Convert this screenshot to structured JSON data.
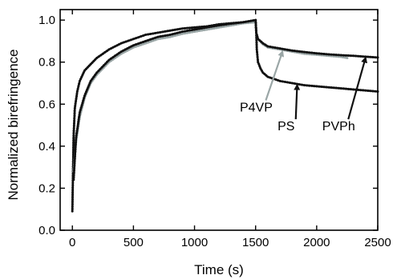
{
  "chart_data": {
    "type": "scatter",
    "title": "",
    "xlabel": "Time (s)",
    "ylabel": "Normalized birefringence",
    "xlim": [
      -100,
      2500
    ],
    "ylim": [
      0,
      1.05
    ],
    "x_ticks": [
      0,
      500,
      1000,
      1500,
      2000,
      2500
    ],
    "x_tick_labels": [
      "0",
      "500",
      "1000",
      "1500",
      "2000",
      "2500"
    ],
    "y_ticks": [
      0.0,
      0.2,
      0.4,
      0.6,
      0.8,
      1.0
    ],
    "y_tick_labels": [
      "0.0",
      "0.2",
      "0.4",
      "0.6",
      "0.8",
      "1.0"
    ],
    "grid": false,
    "legend": "none",
    "series": [
      {
        "name": "PS",
        "color": "#111111",
        "x": [
          0,
          10,
          20,
          40,
          60,
          100,
          150,
          200,
          300,
          400,
          500,
          600,
          700,
          800,
          900,
          1000,
          1100,
          1200,
          1300,
          1400,
          1500,
          1505,
          1510,
          1520,
          1540,
          1560,
          1600,
          1650,
          1700,
          1800,
          1900,
          2000,
          2100,
          2200,
          2300,
          2400,
          2500
        ],
        "y": [
          0.09,
          0.45,
          0.58,
          0.66,
          0.71,
          0.76,
          0.79,
          0.82,
          0.86,
          0.89,
          0.91,
          0.93,
          0.94,
          0.95,
          0.96,
          0.965,
          0.97,
          0.98,
          0.985,
          0.99,
          1.0,
          0.95,
          0.86,
          0.8,
          0.77,
          0.75,
          0.73,
          0.72,
          0.71,
          0.7,
          0.69,
          0.685,
          0.68,
          0.675,
          0.67,
          0.665,
          0.66
        ]
      },
      {
        "name": "P4VP",
        "color": "#9aa6a6",
        "x": [
          10,
          30,
          60,
          100,
          150,
          200,
          300,
          400,
          500,
          600,
          700,
          800,
          900,
          1000,
          1100,
          1200,
          1300,
          1400,
          1500,
          1505,
          1520,
          1560,
          1600,
          1700,
          1800,
          1900,
          2000,
          2100,
          2200,
          2250
        ],
        "y": [
          0.28,
          0.42,
          0.54,
          0.63,
          0.7,
          0.74,
          0.8,
          0.84,
          0.87,
          0.89,
          0.91,
          0.92,
          0.935,
          0.945,
          0.955,
          0.965,
          0.975,
          0.985,
          0.99,
          0.94,
          0.91,
          0.885,
          0.87,
          0.86,
          0.85,
          0.84,
          0.835,
          0.83,
          0.825,
          0.82
        ]
      },
      {
        "name": "PVPh",
        "color": "#111111",
        "x": [
          10,
          30,
          60,
          100,
          150,
          200,
          300,
          400,
          500,
          600,
          700,
          800,
          900,
          1000,
          1100,
          1200,
          1300,
          1400,
          1500,
          1505,
          1520,
          1560,
          1600,
          1700,
          1800,
          1900,
          2000,
          2100,
          2200,
          2300,
          2400,
          2500
        ],
        "y": [
          0.24,
          0.44,
          0.56,
          0.64,
          0.71,
          0.75,
          0.81,
          0.85,
          0.88,
          0.9,
          0.92,
          0.93,
          0.945,
          0.955,
          0.965,
          0.975,
          0.983,
          0.99,
          1.0,
          0.94,
          0.91,
          0.89,
          0.875,
          0.865,
          0.855,
          0.848,
          0.842,
          0.837,
          0.833,
          0.83,
          0.826,
          0.822
        ]
      }
    ],
    "annotations": [
      {
        "text": "P4VP",
        "color": "#9aa6a6",
        "text_at": [
          1505,
          0.565
        ],
        "arrow_to": [
          1720,
          0.85
        ]
      },
      {
        "text": "PS",
        "color": "#111111",
        "text_at": [
          1750,
          0.475
        ],
        "arrow_to": [
          1840,
          0.69
        ]
      },
      {
        "text": "PVPh",
        "color": "#111111",
        "text_at": [
          2180,
          0.475
        ],
        "arrow_to": [
          2400,
          0.82
        ]
      }
    ]
  }
}
